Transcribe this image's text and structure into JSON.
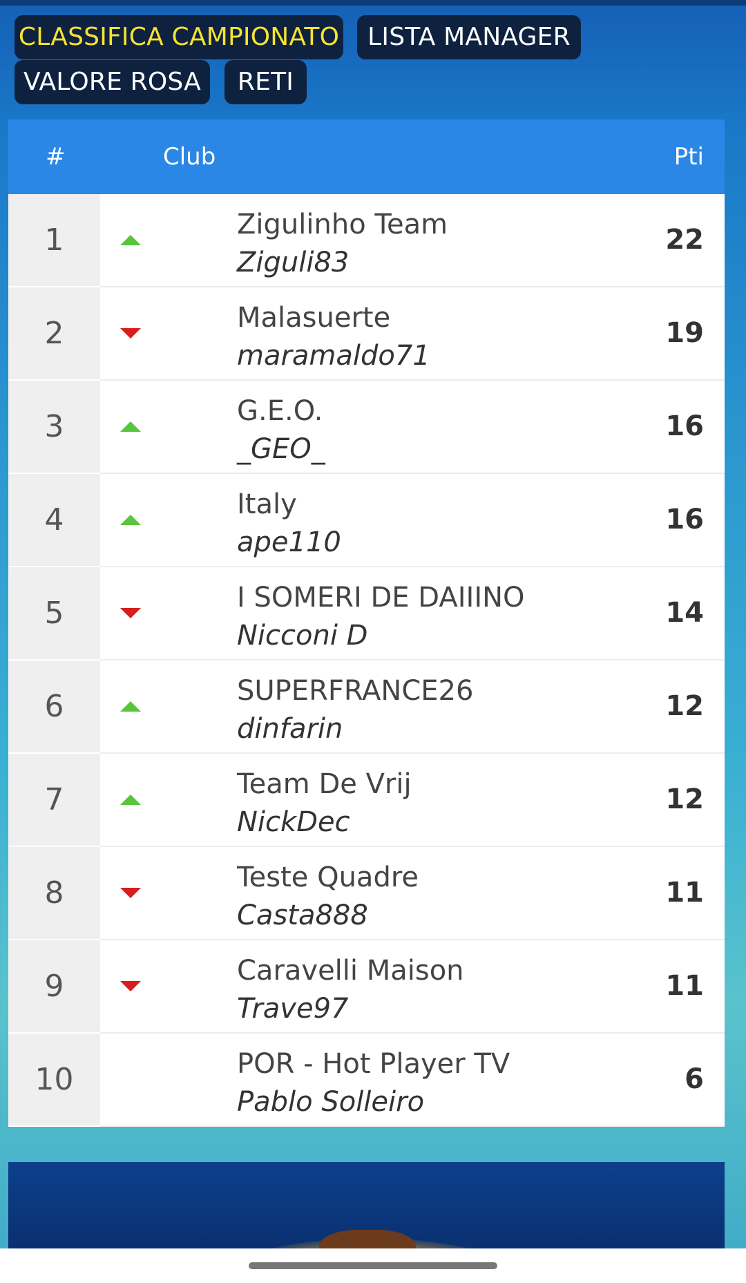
{
  "tabs": [
    {
      "label": "CLASSIFICA CAMPIONATO",
      "active": true
    },
    {
      "label": "LISTA MANAGER",
      "active": false
    },
    {
      "label": "VALORE ROSA",
      "active": false
    },
    {
      "label": "RETI",
      "active": false
    }
  ],
  "table": {
    "headers": {
      "rank": "#",
      "club": "Club",
      "points": "Pti"
    },
    "rows": [
      {
        "rank": "1",
        "trend": "up",
        "club": "Zigulinho Team",
        "manager": "Ziguli83",
        "points": "22"
      },
      {
        "rank": "2",
        "trend": "down",
        "club": "Malasuerte",
        "manager": "maramaldo71",
        "points": "19"
      },
      {
        "rank": "3",
        "trend": "up",
        "club": "G.E.O.",
        "manager": "_GEO_",
        "points": "16"
      },
      {
        "rank": "4",
        "trend": "up",
        "club": "Italy",
        "manager": "ape110",
        "points": "16"
      },
      {
        "rank": "5",
        "trend": "down",
        "club": "I SOMERI DE DAIIINO",
        "manager": "Nicconi D",
        "points": "14"
      },
      {
        "rank": "6",
        "trend": "up",
        "club": "SUPERFRANCE26",
        "manager": "dinfarin",
        "points": "12"
      },
      {
        "rank": "7",
        "trend": "up",
        "club": "Team De Vrij",
        "manager": "NickDec",
        "points": "12"
      },
      {
        "rank": "8",
        "trend": "down",
        "club": "Teste Quadre",
        "manager": "Casta888",
        "points": "11"
      },
      {
        "rank": "9",
        "trend": "down",
        "club": "Caravelli Maison",
        "manager": "Trave97",
        "points": "11"
      },
      {
        "rank": "10",
        "trend": "none",
        "club": "POR - Hot Player TV",
        "manager": "Pablo Solleiro",
        "points": "6"
      }
    ]
  },
  "colors": {
    "tab_bg": "#0e2240",
    "tab_active_text": "#f7e32e",
    "header_bg": "#2a87e5",
    "trend_up": "#56c63a",
    "trend_down": "#d81d1d"
  },
  "icons": {
    "trend_up": "triangle-up-icon",
    "trend_down": "triangle-down-icon"
  }
}
